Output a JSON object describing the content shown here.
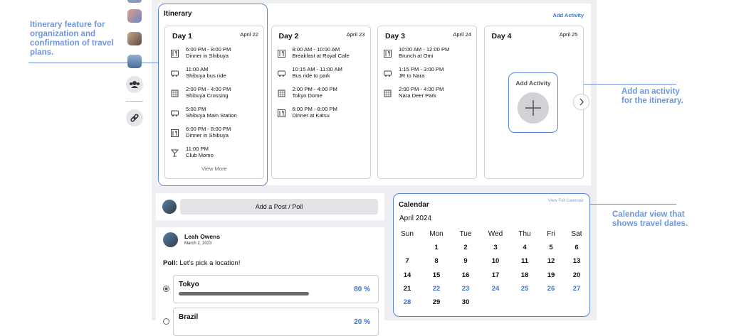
{
  "annotations": {
    "itinerary": "Itinerary feature for organization and confirmation of travel plans.",
    "add_activity": "Add an activity for the itinerary.",
    "calendar": "Calendar view that shows travel dates."
  },
  "itinerary": {
    "title": "Itinerary",
    "add_activity": "Add Activity",
    "view_more": "View More",
    "days": [
      {
        "title": "Day 1",
        "date": "April 22",
        "items": [
          {
            "icon": "meal",
            "time": "6:00 PM - 8:00 PM",
            "place": "Dinner in Shibuya"
          },
          {
            "icon": "bus",
            "time": "11:00 AM",
            "place": "Shibuya bus ride"
          },
          {
            "icon": "building",
            "time": "2:00 PM - 4:00 PM",
            "place": "Shibuya Crossing"
          },
          {
            "icon": "bus",
            "time": "5:00 PM",
            "place": "Shibuya Main Station"
          },
          {
            "icon": "meal",
            "time": "6:00 PM - 8:00 PM",
            "place": "Dinner in Shibuya"
          },
          {
            "icon": "cocktail",
            "time": "11:00 PM",
            "place": "Club Momo"
          }
        ]
      },
      {
        "title": "Day 2",
        "date": "April 23",
        "items": [
          {
            "icon": "meal",
            "time": "8:00 AM - 10:00 AM",
            "place": "Breakfast at Royal Cafe"
          },
          {
            "icon": "bus",
            "time": "10:15 AM - 11:00 AM",
            "place": "Bus ride to park"
          },
          {
            "icon": "building",
            "time": "2:00 PM - 4:00 PM",
            "place": "Tokyo Dome"
          },
          {
            "icon": "meal",
            "time": "6:00 PM - 8:00 PM",
            "place": "Dinner at Katsu"
          }
        ]
      },
      {
        "title": "Day 3",
        "date": "April 24",
        "items": [
          {
            "icon": "meal",
            "time": "10:00 AM - 12:00 PM",
            "place": "Brunch at Omi"
          },
          {
            "icon": "bus",
            "time": "1:15 PM - 3:00 PM",
            "place": "JR to Nara"
          },
          {
            "icon": "building",
            "time": "2:00 PM - 4:00 PM",
            "place": "Nara Deer Park"
          }
        ]
      },
      {
        "title": "Day 4",
        "date": "April 25",
        "items": []
      }
    ]
  },
  "post": {
    "placeholder": "Add a Post / Poll"
  },
  "poll": {
    "author": "Leah Owens",
    "date": "March 2, 2023",
    "label": "Poll:",
    "question": "Let's pick a location!",
    "options": [
      {
        "name": "Tokyo",
        "percent": 80,
        "percent_label": "80 %"
      },
      {
        "name": "Brazil",
        "percent": 20,
        "percent_label": "20 %"
      }
    ]
  },
  "calendar": {
    "title": "Calendar",
    "link": "View Full Calendar",
    "month": "April 2024",
    "weekdays": [
      "Sun",
      "Mon",
      "Tue",
      "Wed",
      "Thu",
      "Fri",
      "Sat"
    ],
    "weeks": [
      [
        1,
        2,
        3,
        4,
        5,
        6
      ],
      [
        7,
        8,
        9,
        10,
        11,
        12,
        13
      ],
      [
        14,
        15,
        16,
        17,
        18,
        19,
        20
      ],
      [
        21,
        22,
        23,
        24,
        25,
        26,
        27
      ],
      [
        28,
        29,
        30
      ]
    ],
    "highlight_range": [
      22,
      28
    ]
  }
}
